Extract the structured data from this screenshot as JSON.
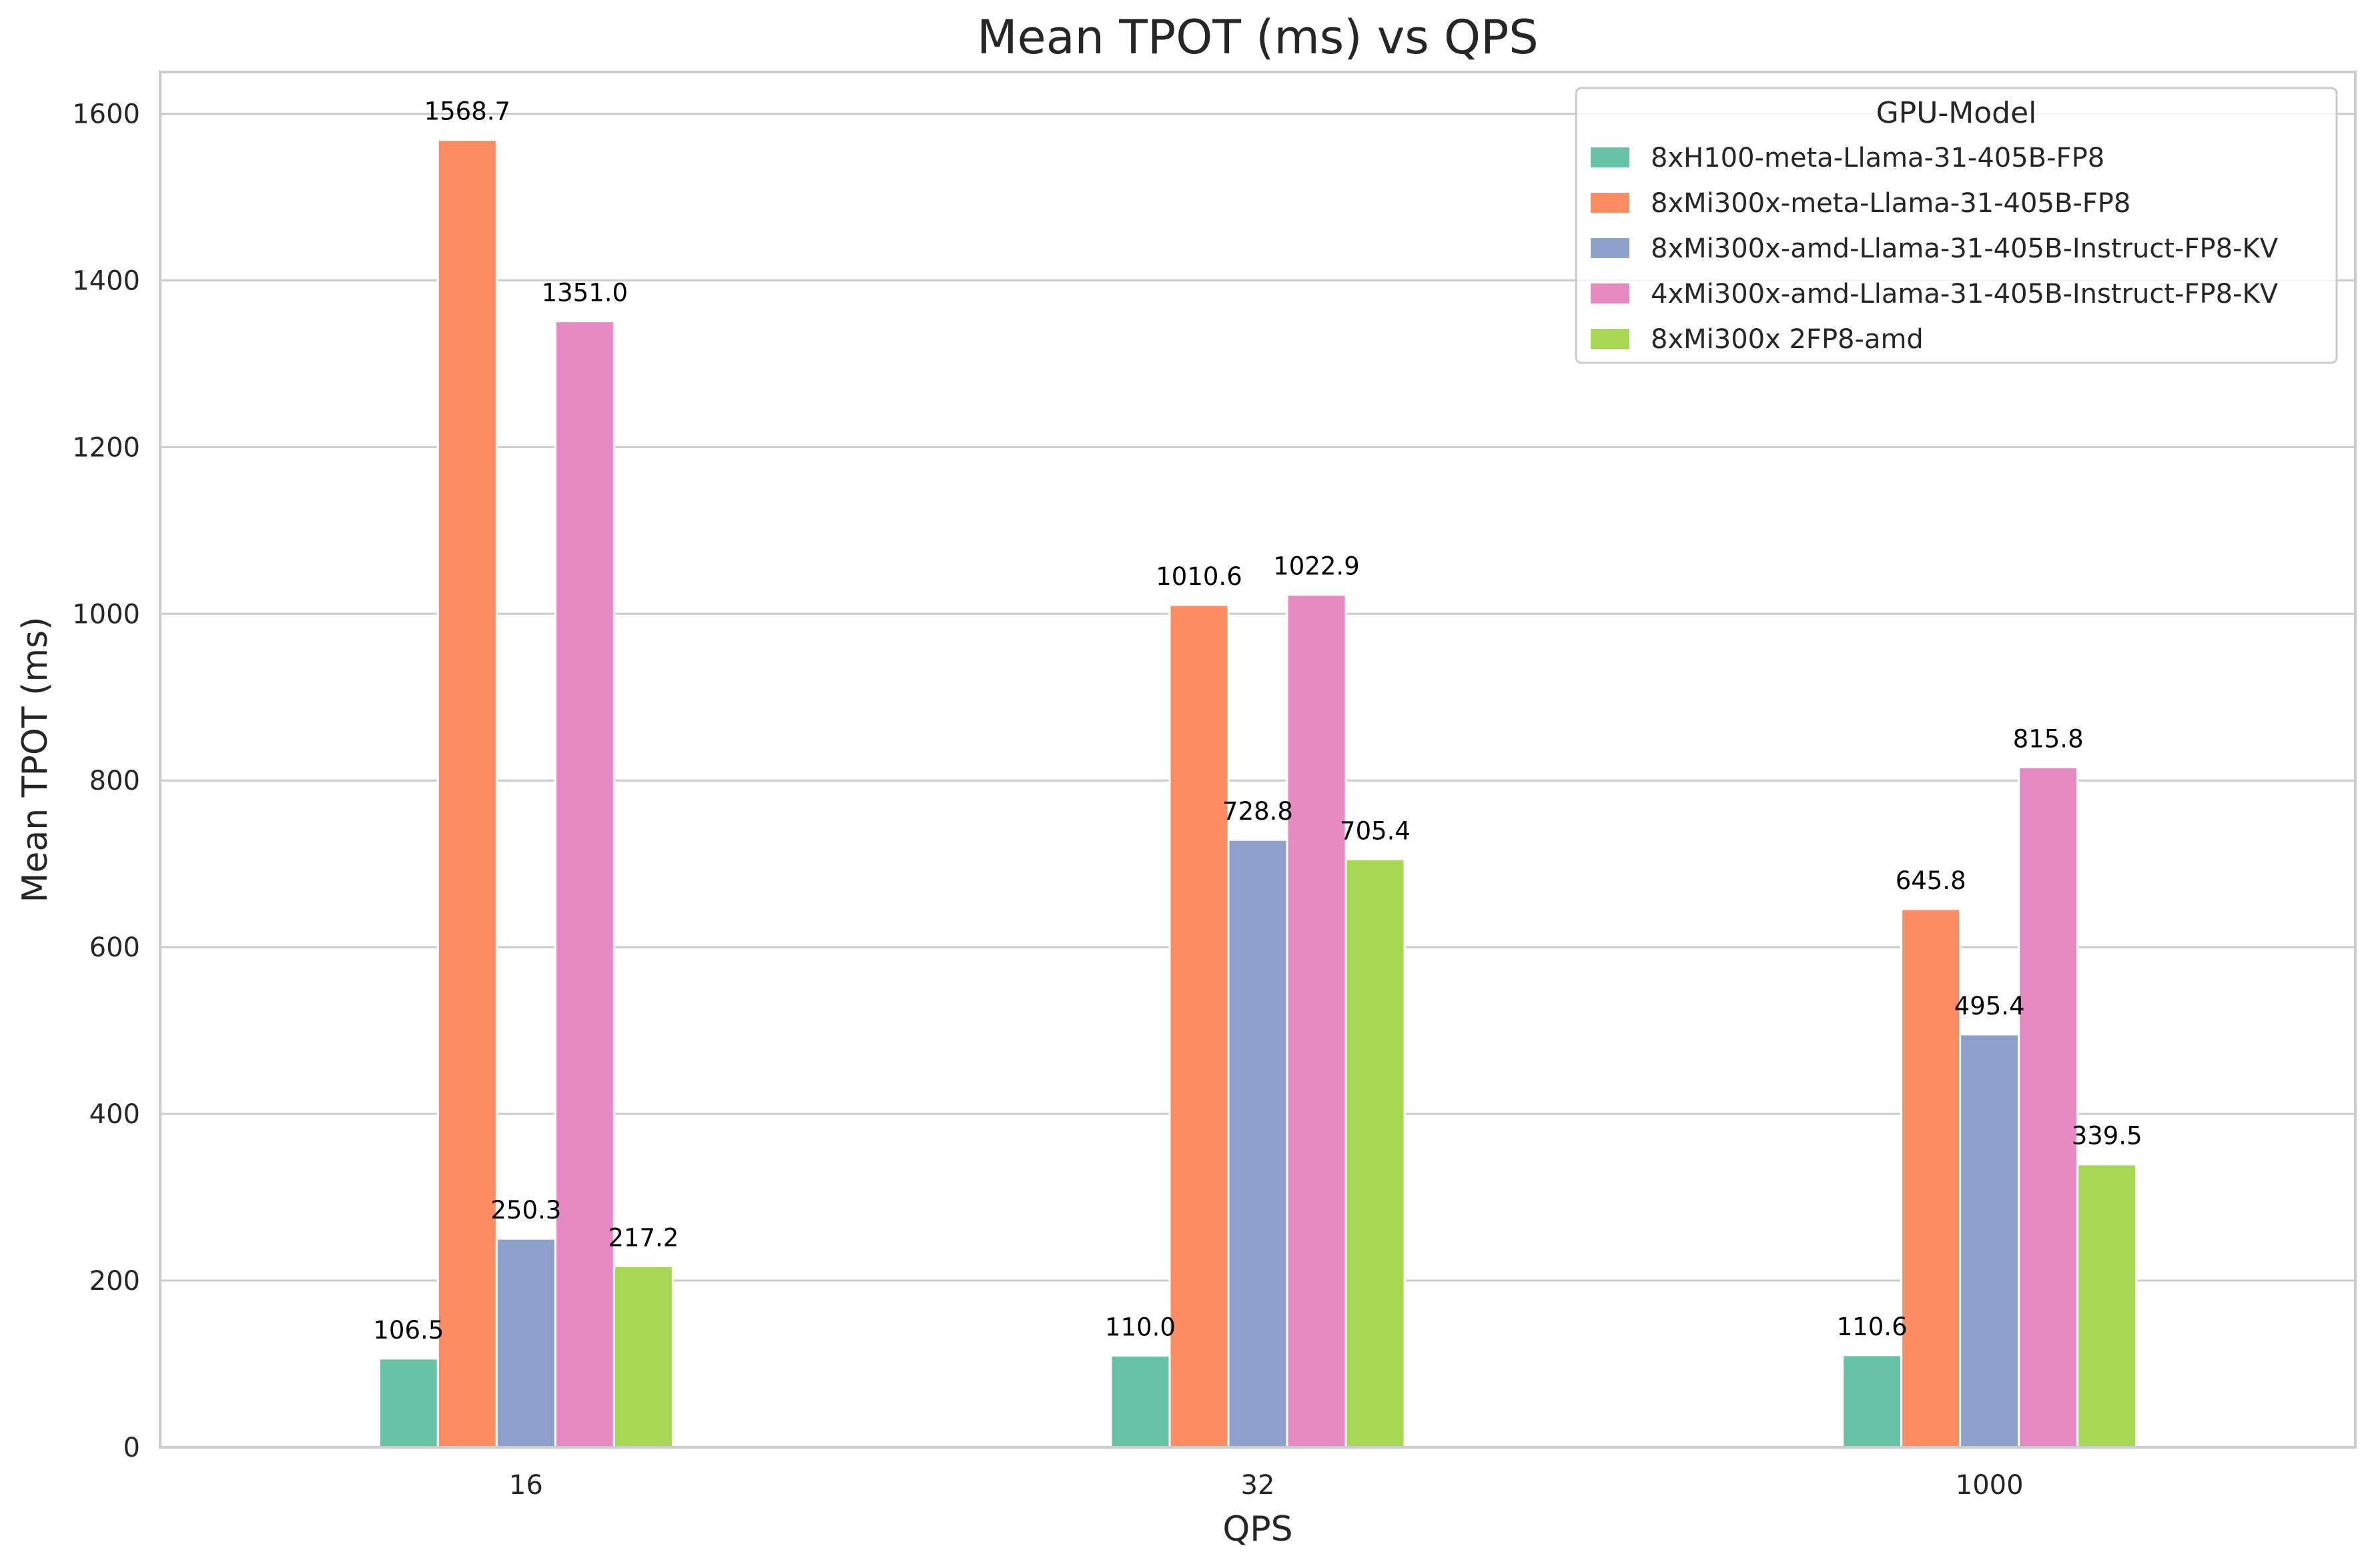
{
  "chart_data": {
    "type": "bar",
    "title": "Mean TPOT (ms) vs QPS",
    "xlabel": "QPS",
    "ylabel": "Mean TPOT (ms)",
    "categories": [
      "16",
      "32",
      "1000"
    ],
    "ylim": [
      0,
      1650
    ],
    "yticks": [
      0,
      200,
      400,
      600,
      800,
      1000,
      1200,
      1400,
      1600
    ],
    "ytick_labels": [
      "0",
      "200",
      "400",
      "600",
      "800",
      "1000",
      "1200",
      "1400",
      "1600"
    ],
    "grid": "horizontal",
    "legend": {
      "title": "GPU-Model",
      "position": "top-right"
    },
    "series": [
      {
        "name": "8xH100-meta-Llama-31-405B-FP8",
        "color": "#66c2a5",
        "values": [
          106.5,
          110.0,
          110.6
        ],
        "labels": [
          "106.5",
          "110.0",
          "110.6"
        ]
      },
      {
        "name": "8xMi300x-meta-Llama-31-405B-FP8",
        "color": "#fc8d62",
        "values": [
          1568.7,
          1010.6,
          645.8
        ],
        "labels": [
          "1568.7",
          "1010.6",
          "645.8"
        ]
      },
      {
        "name": "8xMi300x-amd-Llama-31-405B-Instruct-FP8-KV",
        "color": "#8da0cb",
        "values": [
          250.3,
          728.8,
          495.4
        ],
        "labels": [
          "250.3",
          "728.8",
          "495.4"
        ]
      },
      {
        "name": "4xMi300x-amd-Llama-31-405B-Instruct-FP8-KV",
        "color": "#e78ac3",
        "values": [
          1351.0,
          1022.9,
          815.8
        ],
        "labels": [
          "1351.0",
          "1022.9",
          "815.8"
        ]
      },
      {
        "name": "8xMi300x  2FP8-amd",
        "color": "#a6d854",
        "values": [
          217.2,
          705.4,
          339.5
        ],
        "labels": [
          "217.2",
          "705.4",
          "339.5"
        ]
      }
    ]
  }
}
